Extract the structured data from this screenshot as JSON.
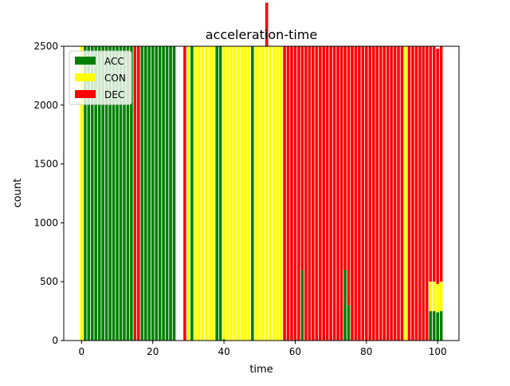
{
  "chart_data": {
    "type": "bar",
    "stacked": true,
    "title": "acceleration-time",
    "xlabel": "time",
    "ylabel": "count",
    "xlim": [
      -5,
      106
    ],
    "ylim": [
      0,
      2500
    ],
    "xticks": [
      0,
      20,
      40,
      60,
      80,
      100
    ],
    "yticks": [
      0,
      500,
      1000,
      1500,
      2000,
      2500
    ],
    "legend_position": "upper-left",
    "series": [
      {
        "name": "ACC",
        "color": "#008000"
      },
      {
        "name": "CON",
        "color": "#ffff00"
      },
      {
        "name": "DEC",
        "color": "#ff0000"
      }
    ],
    "x": [
      0,
      1,
      2,
      3,
      4,
      5,
      6,
      7,
      8,
      9,
      10,
      11,
      12,
      13,
      14,
      15,
      16,
      17,
      18,
      19,
      20,
      21,
      22,
      23,
      24,
      25,
      26,
      27,
      28,
      29,
      30,
      31,
      32,
      33,
      34,
      35,
      36,
      37,
      38,
      39,
      40,
      41,
      42,
      43,
      44,
      45,
      46,
      47,
      48,
      49,
      50,
      51,
      52,
      53,
      54,
      55,
      56,
      57,
      58,
      59,
      60,
      61,
      62,
      63,
      64,
      65,
      66,
      67,
      68,
      69,
      70,
      71,
      72,
      73,
      74,
      75,
      76,
      77,
      78,
      79,
      80,
      81,
      82,
      83,
      84,
      85,
      86,
      87,
      88,
      89,
      90,
      91,
      92,
      93,
      94,
      95,
      96,
      97,
      98,
      99,
      100,
      101
    ],
    "acc": [
      0,
      2500,
      2500,
      2500,
      2500,
      2500,
      2500,
      2500,
      2500,
      2500,
      2500,
      2500,
      2500,
      2500,
      2500,
      0,
      0,
      2500,
      2500,
      2500,
      2500,
      2500,
      2500,
      2500,
      2500,
      2500,
      2500,
      0,
      0,
      0,
      0,
      2500,
      0,
      0,
      0,
      0,
      0,
      0,
      2500,
      2500,
      10,
      0,
      0,
      0,
      0,
      0,
      0,
      0,
      2500,
      0,
      0,
      0,
      0,
      0,
      0,
      0,
      0,
      0,
      0,
      0,
      0,
      0,
      600,
      0,
      0,
      0,
      0,
      0,
      0,
      0,
      0,
      0,
      0,
      0,
      600,
      300,
      0,
      0,
      0,
      0,
      0,
      0,
      0,
      0,
      0,
      0,
      0,
      0,
      0,
      0,
      0,
      0,
      0,
      0,
      0,
      0,
      0,
      0,
      250,
      250,
      240,
      250
    ],
    "con": [
      2500,
      0,
      0,
      0,
      0,
      0,
      0,
      0,
      0,
      0,
      0,
      0,
      0,
      0,
      0,
      0,
      0,
      0,
      0,
      0,
      0,
      0,
      0,
      0,
      0,
      0,
      0,
      0,
      0,
      0,
      2500,
      0,
      2500,
      2500,
      2500,
      2500,
      2500,
      2500,
      0,
      0,
      2490,
      2500,
      2500,
      2500,
      2500,
      2500,
      2500,
      2500,
      0,
      2500,
      2500,
      2500,
      2500,
      2500,
      2500,
      2500,
      2500,
      0,
      0,
      0,
      0,
      0,
      0,
      0,
      0,
      0,
      0,
      0,
      0,
      0,
      0,
      0,
      0,
      0,
      0,
      0,
      0,
      0,
      0,
      0,
      0,
      0,
      0,
      0,
      0,
      0,
      0,
      0,
      0,
      0,
      0,
      2500,
      0,
      0,
      0,
      0,
      0,
      0,
      250,
      250,
      240,
      250
    ],
    "dec": [
      0,
      0,
      0,
      0,
      0,
      0,
      0,
      0,
      0,
      0,
      0,
      0,
      0,
      0,
      0,
      2500,
      2500,
      0,
      0,
      0,
      0,
      0,
      0,
      0,
      0,
      0,
      0,
      0,
      0,
      2500,
      0,
      0,
      0,
      0,
      0,
      0,
      0,
      0,
      0,
      0,
      0,
      0,
      0,
      0,
      0,
      0,
      0,
      0,
      0,
      0,
      0,
      0,
      370,
      0,
      0,
      0,
      0,
      2500,
      2500,
      2500,
      2500,
      2500,
      1900,
      2500,
      2500,
      2500,
      2500,
      2500,
      2500,
      2500,
      2500,
      2500,
      2500,
      2500,
      1900,
      2200,
      2500,
      2500,
      2500,
      2500,
      2500,
      2500,
      2500,
      2500,
      2500,
      2500,
      2500,
      2500,
      2500,
      2500,
      2500,
      0,
      2500,
      2500,
      2500,
      2500,
      2500,
      2500,
      2000,
      2000,
      2000,
      2000
    ]
  }
}
